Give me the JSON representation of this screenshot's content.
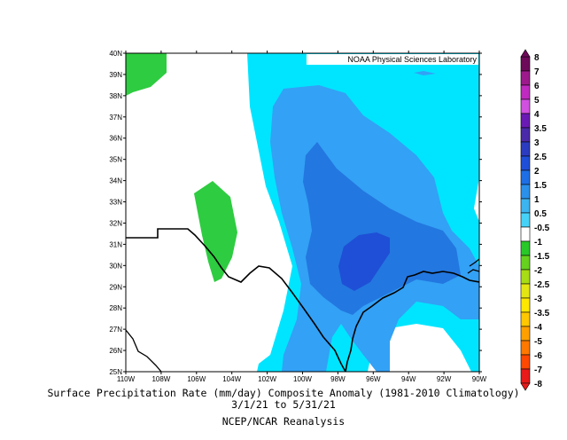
{
  "credit": "NOAA Physical Sciences Laboratory",
  "caption": {
    "line1": "Surface Precipitation Rate (mm/day) Composite Anomaly (1981-2010 Climatology)",
    "line2": "3/1/21 to 5/31/21",
    "line3": "NCEP/NCAR Reanalysis"
  },
  "axes": {
    "lat_labels": [
      "25N",
      "26N",
      "27N",
      "28N",
      "29N",
      "30N",
      "31N",
      "32N",
      "33N",
      "34N",
      "35N",
      "36N",
      "37N",
      "38N",
      "39N",
      "40N"
    ],
    "lon_labels": [
      "110W",
      "108W",
      "106W",
      "104W",
      "102W",
      "100W",
      "98W",
      "96W",
      "94W",
      "92W",
      "90W"
    ]
  },
  "colorbar": {
    "labels": [
      "8",
      "7",
      "6",
      "5",
      "4",
      "3.5",
      "3",
      "2.5",
      "2",
      "1.5",
      "1",
      "0.5",
      "-0.5",
      "-1",
      "-1.5",
      "-2",
      "-2.5",
      "-3",
      "-3.5",
      "-4",
      "-5",
      "-6",
      "-7",
      "-8"
    ],
    "colors": [
      "#6e0a5a",
      "#9c1a8c",
      "#c02ac0",
      "#d050e0",
      "#6a1ab4",
      "#4a2aa8",
      "#2c3cc0",
      "#1f4fd8",
      "#1e6fe6",
      "#2a90ea",
      "#3cb4f0",
      "#46d2f8",
      "#ffffff",
      "#28c828",
      "#66d11e",
      "#a8dc14",
      "#e4e614",
      "#ffe800",
      "#ffc800",
      "#ffa000",
      "#ff7800",
      "#ff4800",
      "#e81a1a"
    ]
  },
  "shading_colors": {
    "cyan": "#00e5ff",
    "light_blue": "#33a1f5",
    "medium_blue": "#2377e0",
    "dark_blue": "#1e4fd6",
    "green": "#2ecc40"
  }
}
